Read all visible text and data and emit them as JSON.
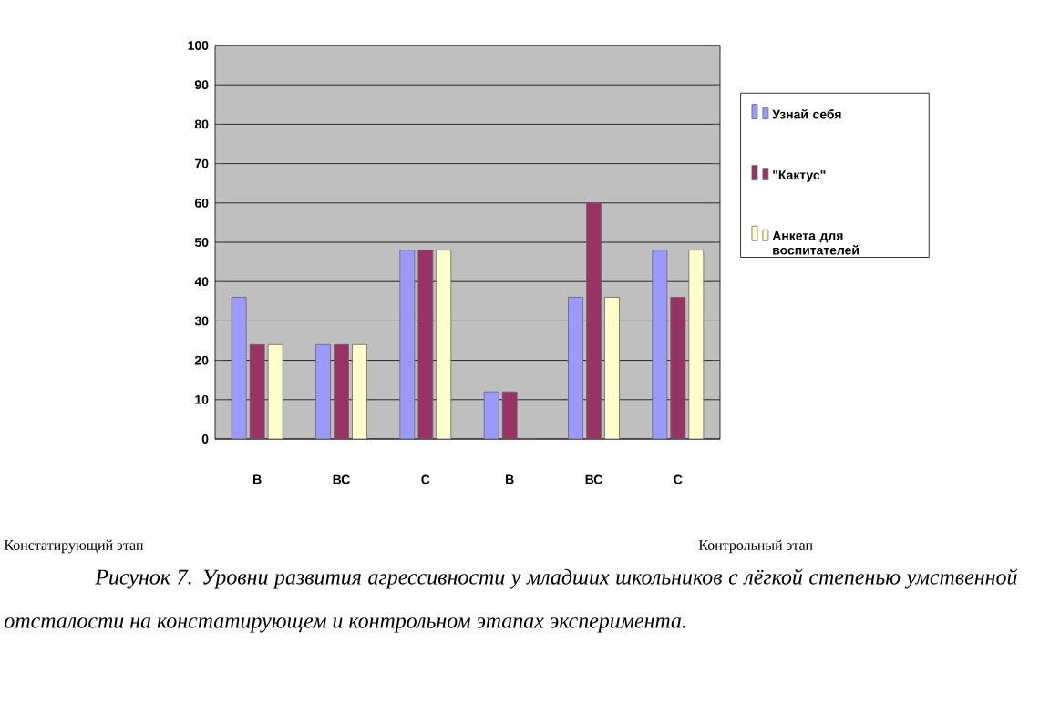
{
  "chart_data": {
    "type": "bar",
    "categories": [
      "В",
      "ВС",
      "С",
      "В",
      "ВС",
      "С"
    ],
    "series": [
      {
        "name": "Узнай себя",
        "color": "#9999ff",
        "values": [
          36,
          24,
          48,
          12,
          36,
          48
        ]
      },
      {
        "name": "\"Кактус\"",
        "color": "#993366",
        "values": [
          24,
          24,
          48,
          12,
          60,
          36
        ]
      },
      {
        "name": "Анкета для воспитателей",
        "color": "#ffffcc",
        "values": [
          24,
          24,
          48,
          0,
          36,
          48
        ]
      }
    ],
    "ylim": [
      0,
      100
    ],
    "yticks": [
      0,
      10,
      20,
      30,
      40,
      50,
      60,
      70,
      80,
      90,
      100
    ],
    "grid": "y",
    "legend": "right",
    "annotations": [
      "Констатирующий этап",
      "Контрольный этап",
      "Рисунок 7. Уровни развития агрессивности у младших школьников с лёгкой степенью умственной отсталости на констатирующем и контрольном этапах эксперимента."
    ]
  }
}
